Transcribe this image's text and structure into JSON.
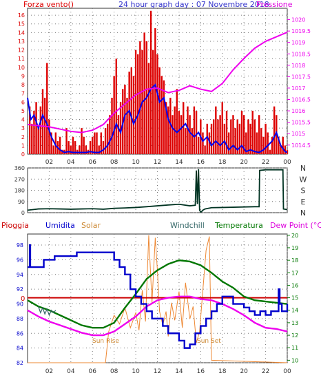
{
  "colors": {
    "wind": "#dd0000",
    "pressure": "#ee00ee",
    "blue_series": "#0000ee",
    "direction": "#003322",
    "humidity": "#0000cc",
    "solar": "#ee8833",
    "temperature": "#007700",
    "dew_point": "#ee00ee",
    "rain": "#cc0000",
    "panel_bg": "#ffffff",
    "grid": "#777777"
  },
  "chart_data": [
    {
      "type": "line",
      "title": "24 hour graph day : 07 Novembre 2018",
      "legend_left": "Forza vento()",
      "legend_right": "Pressione",
      "grid": true,
      "x_ticks": [
        "02",
        "04",
        "06",
        "08",
        "10",
        "12",
        "14",
        "16",
        "18",
        "20",
        "22",
        "00"
      ],
      "y_left_ticks": [
        "0",
        "1",
        "2",
        "3",
        "4",
        "5",
        "6",
        "7",
        "8",
        "9",
        "10",
        "11",
        "12",
        "13",
        "14",
        "15",
        "16"
      ],
      "y_left_range": [
        0,
        16.8
      ],
      "y_right_ticks": [
        "1014.5",
        "1015",
        "1015.5",
        "1016",
        "1016.5",
        "1017",
        "1017.5",
        "1018",
        "1018.5",
        "1019",
        "1019.5",
        "1020"
      ],
      "y_right_range": [
        1014.1,
        1020.5
      ],
      "x_range": [
        0,
        24
      ],
      "series": [
        {
          "key": "wind_gust",
          "axis": "left",
          "style": "bars",
          "x": [
            0.2,
            0.4,
            0.6,
            0.8,
            1.0,
            1.2,
            1.4,
            1.6,
            1.8,
            2.0,
            2.2,
            2.4,
            2.6,
            2.8,
            3.0,
            3.2,
            3.4,
            3.6,
            3.8,
            4.0,
            4.2,
            4.4,
            4.6,
            4.8,
            5.0,
            5.2,
            5.4,
            5.6,
            5.8,
            6.0,
            6.2,
            6.4,
            6.6,
            6.8,
            7.0,
            7.2,
            7.4,
            7.6,
            7.8,
            8.0,
            8.2,
            8.4,
            8.6,
            8.8,
            9.0,
            9.2,
            9.4,
            9.6,
            9.8,
            10.0,
            10.2,
            10.4,
            10.6,
            10.8,
            11.0,
            11.2,
            11.4,
            11.6,
            11.8,
            12.0,
            12.2,
            12.4,
            12.6,
            12.8,
            13.0,
            13.2,
            13.4,
            13.6,
            13.8,
            14.0,
            14.2,
            14.4,
            14.6,
            14.8,
            15.0,
            15.2,
            15.4,
            15.6,
            15.8,
            16.0,
            16.2,
            16.4,
            16.6,
            16.8,
            17.0,
            17.2,
            17.4,
            17.6,
            17.8,
            18.0,
            18.2,
            18.4,
            18.6,
            18.8,
            19.0,
            19.2,
            19.4,
            19.6,
            19.8,
            20.0,
            20.2,
            20.4,
            20.6,
            20.8,
            21.0,
            21.2,
            21.4,
            21.6,
            21.8,
            22.0,
            22.2,
            22.4,
            22.6,
            22.8,
            23.0,
            23.2,
            23.4,
            23.6,
            23.8,
            24.0
          ],
          "values": [
            5.5,
            3.5,
            5.0,
            6.0,
            3.0,
            5.5,
            7.5,
            6.5,
            10.5,
            4.0,
            2.5,
            1.0,
            2.5,
            1.5,
            2.0,
            0.5,
            0.5,
            3.0,
            1.5,
            1.0,
            2.0,
            1.5,
            0.5,
            1.0,
            3.0,
            2.0,
            1.0,
            0.5,
            1.5,
            2.0,
            2.5,
            2.5,
            1.0,
            2.5,
            1.5,
            3.0,
            3.5,
            4.5,
            6.5,
            9.0,
            11.0,
            4.5,
            6.0,
            7.5,
            8.0,
            6.5,
            9.5,
            10.0,
            9.0,
            12.0,
            11.5,
            13.0,
            12.0,
            14.0,
            13.0,
            10.5,
            16.5,
            12.0,
            14.5,
            11.5,
            10.0,
            9.0,
            8.5,
            6.0,
            5.5,
            6.5,
            4.5,
            5.5,
            7.5,
            5.0,
            4.5,
            6.0,
            3.0,
            5.5,
            4.5,
            3.0,
            5.5,
            5.0,
            2.0,
            4.0,
            2.5,
            1.0,
            3.5,
            2.5,
            3.5,
            4.0,
            5.5,
            4.0,
            4.5,
            6.0,
            3.5,
            5.0,
            2.5,
            4.0,
            4.5,
            3.0,
            4.0,
            3.5,
            5.0,
            4.5,
            2.5,
            4.0,
            3.5,
            5.0,
            4.0,
            2.5,
            4.5,
            3.0,
            2.0,
            3.5,
            2.5,
            0.5,
            2.0,
            5.5,
            4.5,
            2.0,
            1.0,
            2.0,
            1.0,
            0.5
          ]
        },
        {
          "key": "wind_avg",
          "axis": "left",
          "style": "line",
          "x": [
            0.0,
            0.3,
            0.6,
            1.0,
            1.4,
            1.8,
            2.2,
            2.6,
            3.0,
            3.4,
            3.8,
            4.2,
            4.6,
            5.0,
            5.4,
            5.8,
            6.2,
            6.6,
            7.0,
            7.4,
            7.8,
            8.2,
            8.6,
            9.0,
            9.4,
            9.8,
            10.2,
            10.6,
            11.0,
            11.4,
            11.8,
            12.2,
            12.6,
            13.0,
            13.4,
            13.8,
            14.2,
            14.6,
            15.0,
            15.4,
            15.8,
            16.2,
            16.6,
            17.0,
            17.4,
            17.8,
            18.2,
            18.6,
            19.0,
            19.4,
            19.8,
            20.2,
            20.6,
            21.0,
            21.4,
            21.8,
            22.2,
            22.6,
            23.0,
            23.4,
            23.8,
            24.0
          ],
          "values": [
            6.5,
            4.0,
            4.5,
            3.0,
            4.5,
            3.5,
            2.0,
            1.0,
            0.5,
            0.2,
            0.3,
            0.2,
            0.2,
            0.2,
            0.2,
            0.3,
            0.2,
            0.2,
            0.5,
            1.0,
            2.0,
            3.5,
            2.5,
            4.5,
            5.0,
            3.5,
            4.5,
            6.0,
            6.5,
            7.5,
            8.0,
            6.0,
            6.5,
            4.0,
            3.0,
            2.5,
            3.0,
            3.5,
            2.5,
            2.0,
            2.5,
            1.5,
            2.0,
            1.0,
            1.5,
            1.0,
            1.5,
            0.5,
            1.0,
            0.5,
            1.0,
            0.3,
            0.5,
            0.3,
            0.2,
            0.5,
            1.0,
            1.5,
            2.5,
            1.0,
            0.3,
            0.2
          ]
        },
        {
          "key": "pressure",
          "axis": "right",
          "style": "line",
          "x": [
            0,
            1,
            2,
            3,
            4,
            5,
            6,
            7,
            8,
            9,
            10,
            11,
            12,
            13,
            14,
            15,
            16,
            17,
            18,
            19,
            20,
            21,
            22,
            23,
            24
          ],
          "values": [
            1015.4,
            1015.35,
            1015.3,
            1015.2,
            1015.1,
            1015.05,
            1015.15,
            1015.4,
            1015.9,
            1016.3,
            1016.7,
            1016.95,
            1017.0,
            1016.8,
            1016.9,
            1017.1,
            1016.95,
            1016.85,
            1017.2,
            1017.8,
            1018.3,
            1018.75,
            1019.05,
            1019.25,
            1019.45
          ]
        }
      ]
    },
    {
      "type": "line",
      "title": "",
      "y_left_ticks": [
        "0",
        "90",
        "180",
        "270",
        "360"
      ],
      "y_left_range": [
        0,
        360
      ],
      "y_right_labels": [
        "N",
        "W",
        "S",
        "E",
        "N"
      ],
      "x_range": [
        0,
        24
      ],
      "grid": true,
      "series": [
        {
          "key": "wind_direction",
          "x": [
            0.0,
            0.5,
            1.0,
            2.0,
            3.0,
            4.0,
            5.0,
            6.0,
            7.0,
            8.0,
            9.0,
            10.0,
            11.0,
            12.0,
            13.0,
            14.0,
            15.0,
            15.5,
            15.6,
            15.7,
            15.8,
            15.9,
            16.0,
            16.1,
            16.2,
            16.4,
            17.0,
            18.0,
            19.0,
            20.0,
            21.0,
            21.4,
            21.45,
            22.0,
            23.0,
            23.5,
            23.6,
            23.65,
            24.0
          ],
          "values": [
            20,
            25,
            30,
            32,
            30,
            28,
            30,
            32,
            28,
            35,
            38,
            42,
            48,
            55,
            62,
            68,
            55,
            60,
            340,
            70,
            350,
            20,
            5,
            10,
            20,
            30,
            40,
            42,
            44,
            46,
            48,
            48,
            340,
            345,
            345,
            345,
            345,
            30,
            25
          ]
        }
      ]
    },
    {
      "type": "line",
      "title": "",
      "legend": [
        "Pioggia",
        "Umidita",
        "Solar",
        "Windchill",
        "Temperatura",
        "Dew Point (°C)"
      ],
      "y_left_ticks": [
        "82",
        "84",
        "86",
        "88",
        "90",
        "92",
        "94",
        "96",
        "98"
      ],
      "y_left_range": [
        82,
        99.5
      ],
      "y_right_ticks": [
        "10",
        "11",
        "12",
        "13",
        "14",
        "15",
        "16",
        "17",
        "18",
        "19",
        "20"
      ],
      "y_right_range": [
        9.8,
        20.1
      ],
      "x_range": [
        0,
        24
      ],
      "annotations": [
        "Sun Rise",
        "Sun Set"
      ],
      "rain_level": 15.0,
      "grid": true,
      "series": [
        {
          "key": "humidity",
          "axis": "left",
          "x": [
            0.0,
            0.2,
            0.25,
            0.5,
            1.0,
            1.5,
            1.55,
            2.5,
            3.0,
            4.0,
            4.5,
            4.55,
            5.0,
            6.0,
            6.5,
            7.0,
            7.5,
            8.0,
            8.5,
            9.0,
            9.5,
            10.0,
            10.5,
            11.0,
            11.5,
            12.0,
            12.5,
            13.0,
            13.5,
            14.0,
            14.5,
            15.0,
            15.5,
            16.0,
            16.5,
            17.0,
            17.5,
            18.0,
            18.5,
            19.0,
            19.5,
            20.0,
            20.5,
            21.0,
            21.5,
            22.0,
            22.5,
            23.0,
            23.2,
            23.3,
            23.5,
            24.0
          ],
          "values": [
            95,
            98,
            95,
            95,
            95,
            96,
            96,
            96.5,
            96.5,
            96.5,
            96.5,
            97,
            97,
            97,
            97,
            97,
            97,
            96,
            95,
            94,
            92,
            91,
            90,
            89,
            88,
            88,
            87,
            86,
            86,
            85,
            84,
            84.5,
            86,
            87,
            88,
            89,
            90,
            91,
            91,
            90,
            90,
            89.5,
            89,
            88.5,
            89,
            88.5,
            89,
            89,
            92,
            90,
            89,
            90
          ]
        },
        {
          "key": "temperature",
          "axis": "right",
          "x": [
            0,
            1,
            2,
            3,
            4,
            5,
            6,
            7,
            8,
            9,
            10,
            11,
            12,
            13,
            14,
            15,
            16,
            17,
            18,
            19,
            20,
            21,
            22,
            23,
            24
          ],
          "values": [
            14.8,
            14.3,
            14.0,
            13.6,
            13.2,
            12.8,
            12.6,
            12.6,
            13.0,
            14.2,
            15.3,
            16.5,
            17.2,
            17.7,
            18.0,
            17.9,
            17.6,
            17.0,
            16.3,
            15.8,
            15.1,
            14.8,
            14.7,
            14.6,
            14.5
          ]
        },
        {
          "key": "windchill",
          "axis": "right",
          "x": [
            1.0,
            1.2,
            1.4,
            1.6,
            1.8,
            2.0,
            2.2,
            2.4,
            2.6
          ],
          "values": [
            14.3,
            13.8,
            14.2,
            13.7,
            14.1,
            13.6,
            14.0,
            13.8,
            14.0
          ]
        },
        {
          "key": "dew_point",
          "axis": "right",
          "x": [
            0,
            1,
            2,
            3,
            4,
            5,
            6,
            7,
            8,
            9,
            10,
            11,
            12,
            13,
            14,
            15,
            16,
            17,
            18,
            19,
            20,
            21,
            22,
            23,
            24
          ],
          "values": [
            14.0,
            13.5,
            13.1,
            12.8,
            12.5,
            12.2,
            12.0,
            12.0,
            12.3,
            12.9,
            13.5,
            14.3,
            14.8,
            15.0,
            15.1,
            15.1,
            14.9,
            14.8,
            14.5,
            14.1,
            13.6,
            13.0,
            12.6,
            12.5,
            12.3
          ]
        },
        {
          "key": "solar",
          "axis": "right",
          "x": [
            0.0,
            7.2,
            7.5,
            8.0,
            8.5,
            9.0,
            9.5,
            10.0,
            10.3,
            10.6,
            10.9,
            11.2,
            11.5,
            11.8,
            12.0,
            12.2,
            12.5,
            12.8,
            13.0,
            13.3,
            13.6,
            14.0,
            14.3,
            14.6,
            15.0,
            15.3,
            15.6,
            15.9,
            16.2,
            16.5,
            16.8,
            17.0,
            24.0
          ],
          "values": [
            9.8,
            9.8,
            12.3,
            13.6,
            12.9,
            14.2,
            12.6,
            13.8,
            12.4,
            15.6,
            13.1,
            20.0,
            14.6,
            19.8,
            17.2,
            13.9,
            12.8,
            13.9,
            11.9,
            14.6,
            13.2,
            15.5,
            12.6,
            16.2,
            13.3,
            14.3,
            11.4,
            12.3,
            15.6,
            18.8,
            19.9,
            10.0,
            9.8
          ]
        }
      ]
    }
  ]
}
